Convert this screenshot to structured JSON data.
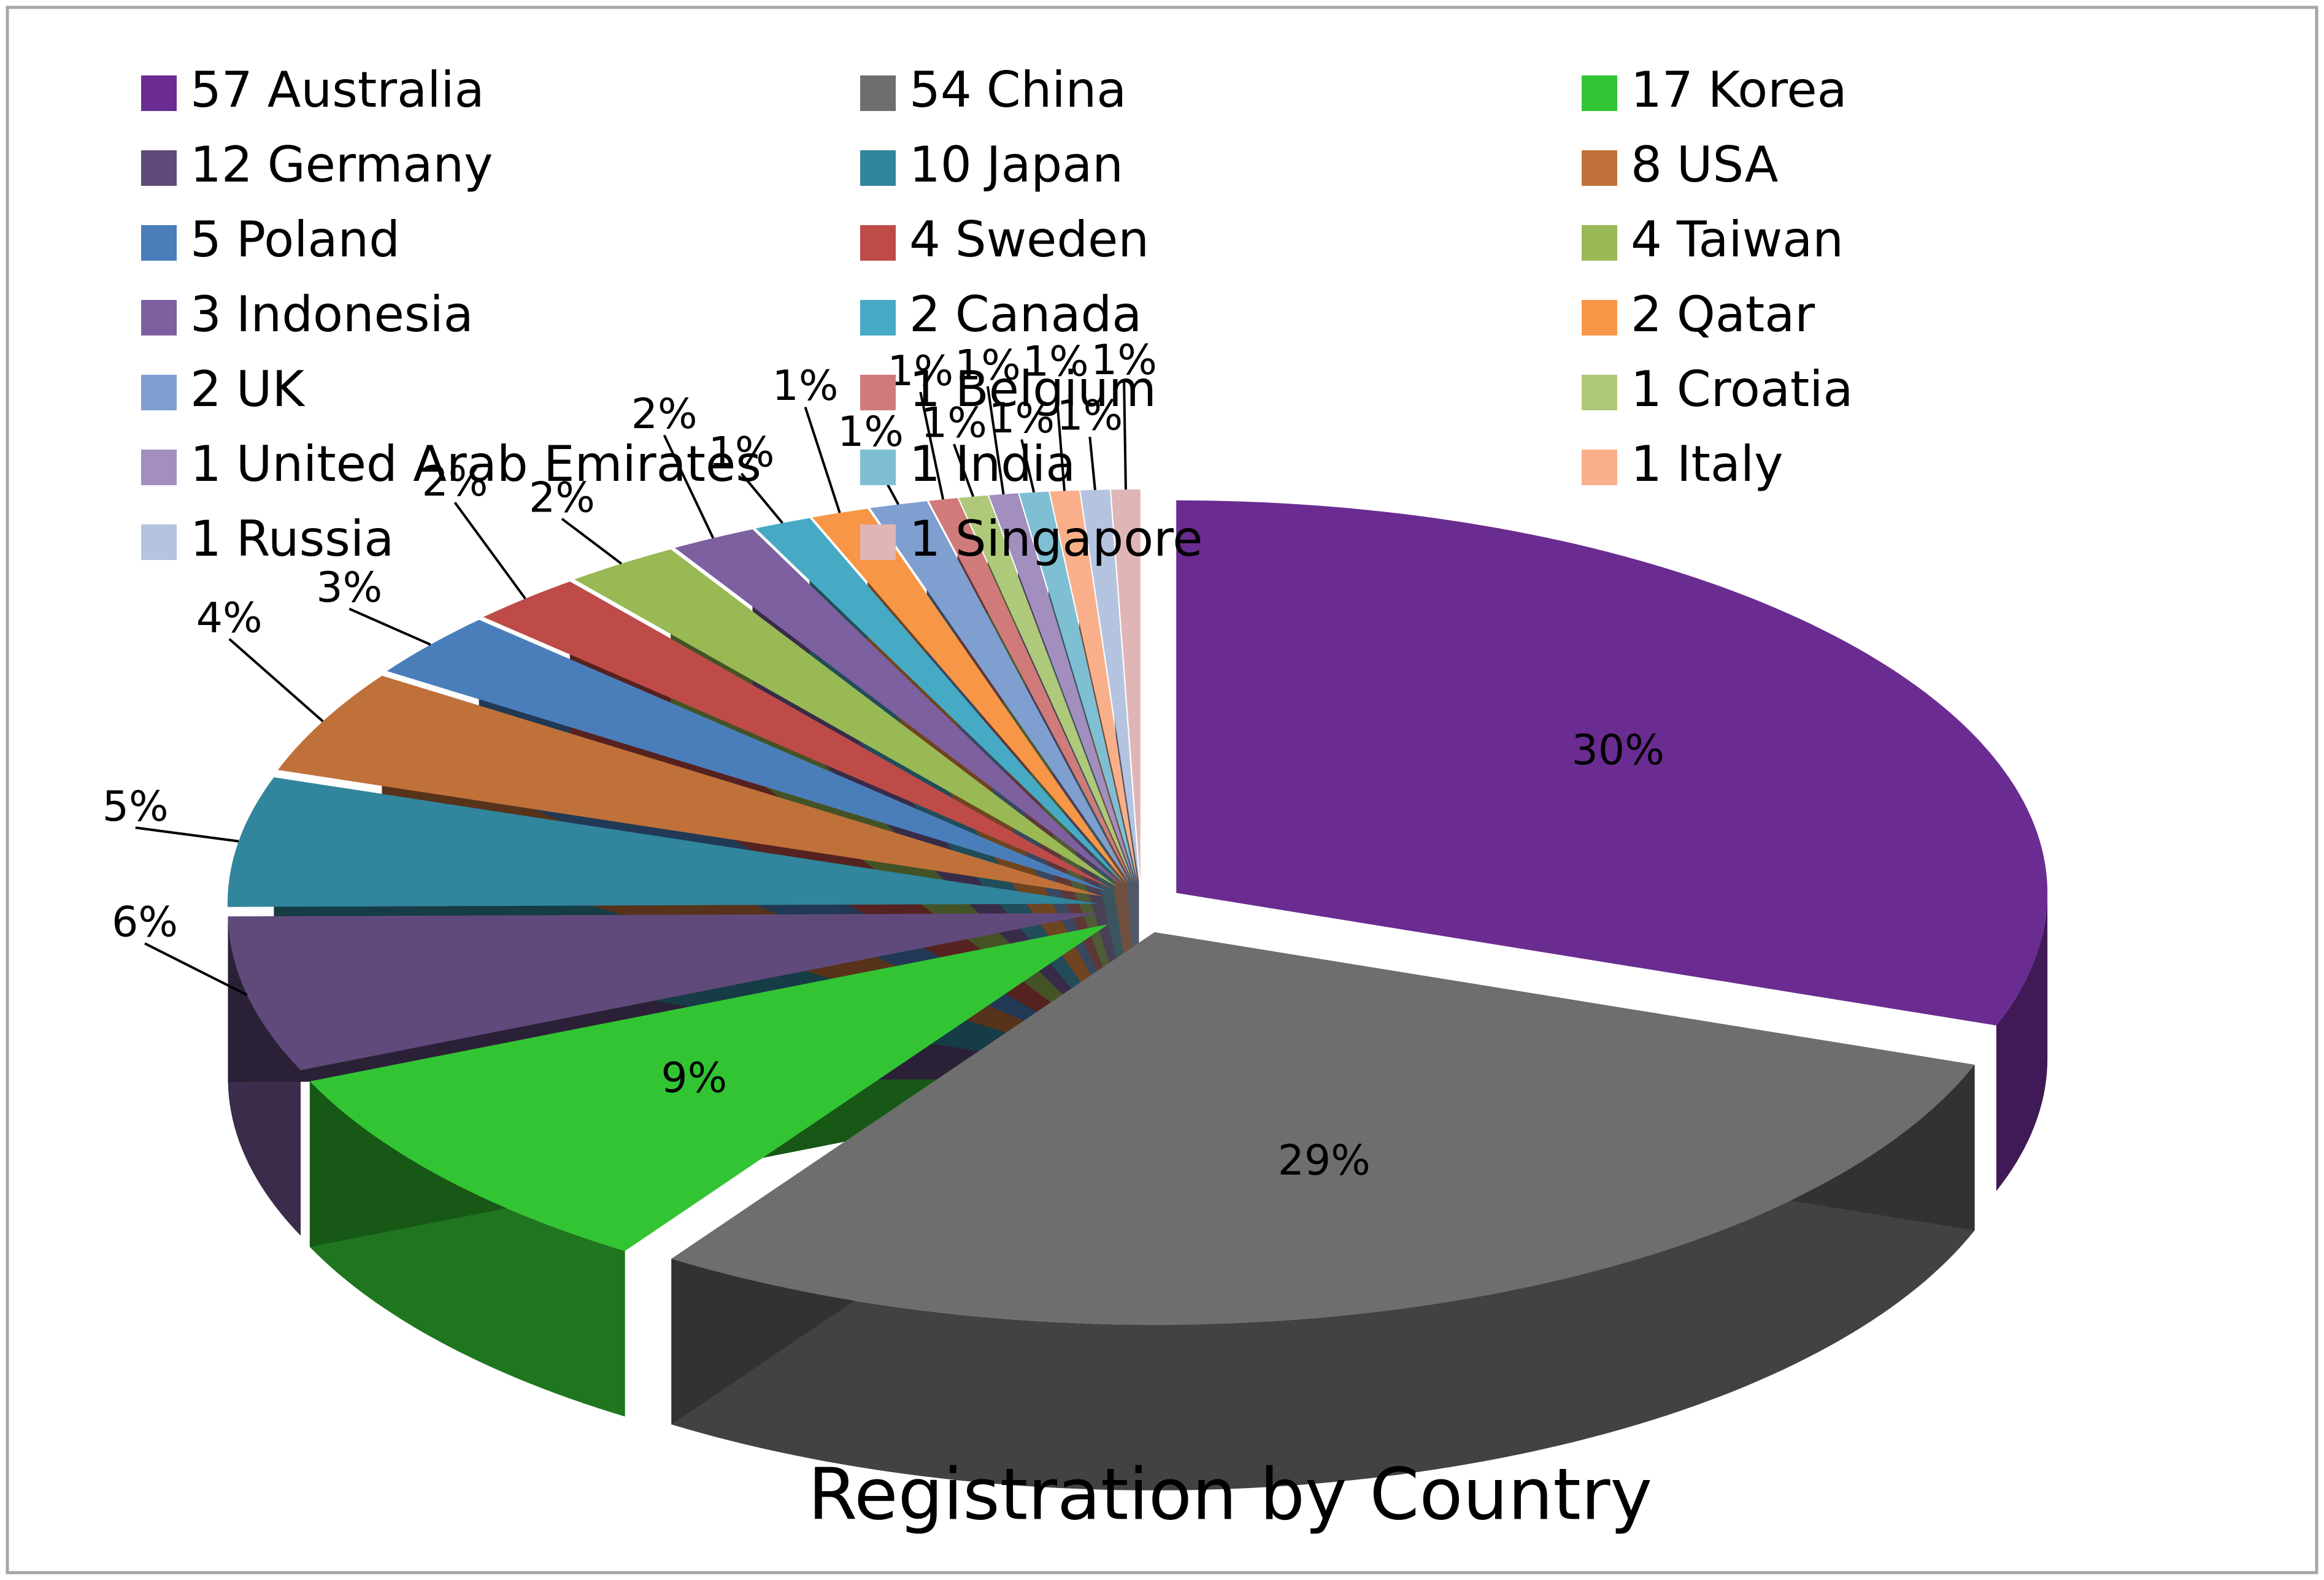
{
  "chart_data": {
    "type": "pie",
    "title": "Registration by Country",
    "categories": [
      "Australia",
      "China",
      "Korea",
      "Germany",
      "Japan",
      "USA",
      "Poland",
      "Sweden",
      "Taiwan",
      "Indonesia",
      "Canada",
      "Qatar",
      "UK",
      "Belgium",
      "Croatia",
      "United Arab Emirates",
      "India",
      "Italy",
      "Russia",
      "Singapore"
    ],
    "values": [
      57,
      54,
      17,
      12,
      10,
      8,
      5,
      4,
      4,
      3,
      2,
      2,
      2,
      1,
      1,
      1,
      1,
      1,
      1,
      1
    ],
    "value_labels": [
      "30%",
      "29%",
      "9%",
      "6%",
      "5%",
      "4%",
      "3%",
      "2%",
      "2%",
      "2%",
      "1%",
      "1%",
      "1%",
      "1%",
      "1%",
      "1%",
      "1%",
      "1%",
      "1%",
      "1%"
    ],
    "colors": [
      "#6a2c91",
      "#6e6e6e",
      "#33c433",
      "#604a7b",
      "#31859c",
      "#c0713a",
      "#4a7ebb",
      "#be4b48",
      "#98b954",
      "#7d60a0",
      "#46aac5",
      "#f79646",
      "#7f9fd0",
      "#d07b7a",
      "#afc97a",
      "#a28ebf",
      "#7fbfd3",
      "#f9b08a",
      "#b4c4e0",
      "#dfb5b5"
    ],
    "legend": "top"
  }
}
